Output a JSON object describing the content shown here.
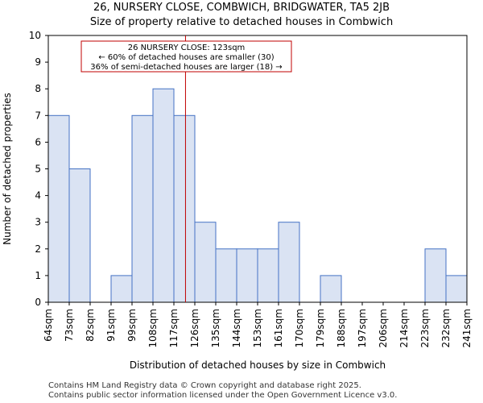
{
  "chart_data": {
    "type": "histogram",
    "title_line1": "26, NURSERY CLOSE, COMBWICH, BRIDGWATER, TA5 2JB",
    "title_line2": "Size of property relative to detached houses in Combwich",
    "xlabel": "Distribution of detached houses by size in Combwich",
    "ylabel": "Number of detached properties",
    "categories": [
      "64sqm",
      "73sqm",
      "82sqm",
      "91sqm",
      "99sqm",
      "108sqm",
      "117sqm",
      "126sqm",
      "135sqm",
      "144sqm",
      "153sqm",
      "161sqm",
      "170sqm",
      "179sqm",
      "188sqm",
      "197sqm",
      "206sqm",
      "214sqm",
      "223sqm",
      "232sqm",
      "241sqm"
    ],
    "values": [
      7,
      5,
      0,
      1,
      7,
      8,
      7,
      3,
      2,
      2,
      2,
      3,
      0,
      1,
      0,
      0,
      0,
      0,
      2,
      1
    ],
    "ylim": [
      0,
      10
    ],
    "yticks": [
      0,
      1,
      2,
      3,
      4,
      5,
      6,
      7,
      8,
      9,
      10
    ],
    "marker_value_sqm": 123,
    "annotation": {
      "line1": "26 NURSERY CLOSE: 123sqm",
      "line2": "← 60% of detached houses are smaller (30)",
      "line3": "36% of semi-detached houses are larger (18) →"
    },
    "colors": {
      "bar_fill": "#dae3f3",
      "bar_edge": "#4472c4",
      "marker": "#c00000"
    }
  },
  "footer": {
    "line1": "Contains HM Land Registry data © Crown copyright and database right 2025.",
    "line2": "Contains public sector information licensed under the Open Government Licence v3.0."
  }
}
